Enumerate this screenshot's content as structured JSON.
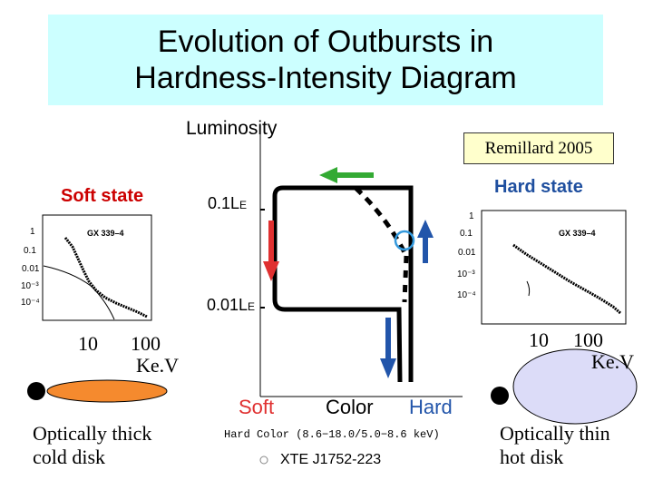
{
  "title": {
    "line1": "Evolution of Outbursts in",
    "line2": "Hardness-Intensity Diagram"
  },
  "reference": "Remillard 2005",
  "diagram": {
    "y_axis_label": "Luminosity",
    "y_tick_high": "0.1L",
    "y_tick_low": "0.01L",
    "y_tick_subscript": "E",
    "x_soft": "Soft",
    "x_color": "Color",
    "x_hard": "Hard",
    "soft_state_label": "Soft state",
    "hard_state_label": "Hard state",
    "hard_color_label": "Hard Color (8.6−18.0/5.0−8.6 keV)",
    "source_name": "XTE J1752-223",
    "colors": {
      "red": "#e03030",
      "green": "#33aa33",
      "blue": "#2255aa"
    }
  },
  "soft_spectrum": {
    "source": "GX 339–4",
    "y_ticks": [
      "1",
      "0.1",
      "0.01",
      "10⁻³",
      "10⁻⁴"
    ],
    "x_tick_1": "10",
    "x_tick_2": "100",
    "x_unit": "Ke.V",
    "caption_line1": "Optically thick",
    "caption_line2": "cold disk",
    "disk_color": "#f58a2e"
  },
  "hard_spectrum": {
    "source": "GX 339–4",
    "y_ticks": [
      "1",
      "0.1",
      "0.01",
      "10⁻³",
      "10⁻⁴"
    ],
    "x_tick_1": "10",
    "x_tick_2": "100",
    "x_unit": "Ke.V",
    "caption_line1": "Optically thin",
    "caption_line2": "hot disk",
    "disk_color": "#dcdcf8"
  }
}
